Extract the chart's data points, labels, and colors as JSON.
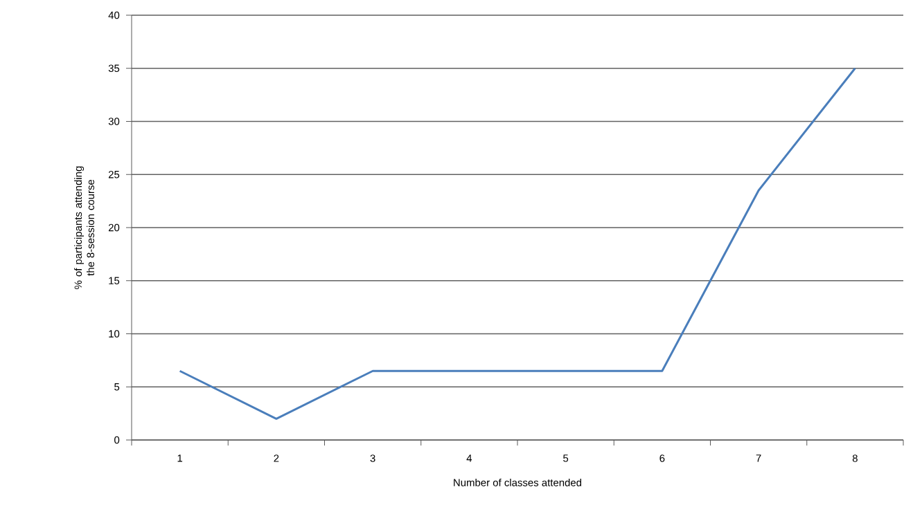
{
  "chart_data": {
    "type": "line",
    "xlabel": "Number of classes attended",
    "ylabel": "% of participants attending the 8-session course",
    "categories": [
      "1",
      "2",
      "3",
      "4",
      "5",
      "6",
      "7",
      "8"
    ],
    "series": [
      {
        "color": "#4a7ebb",
        "values": [
          6.5,
          2,
          6.5,
          6.5,
          6.5,
          6.5,
          23.5,
          35
        ]
      }
    ],
    "ylim": [
      0,
      40
    ],
    "yticks": [
      0,
      5,
      10,
      15,
      20,
      25,
      30,
      35,
      40
    ],
    "grid": "y",
    "marker": "none",
    "line_style": "solid"
  }
}
